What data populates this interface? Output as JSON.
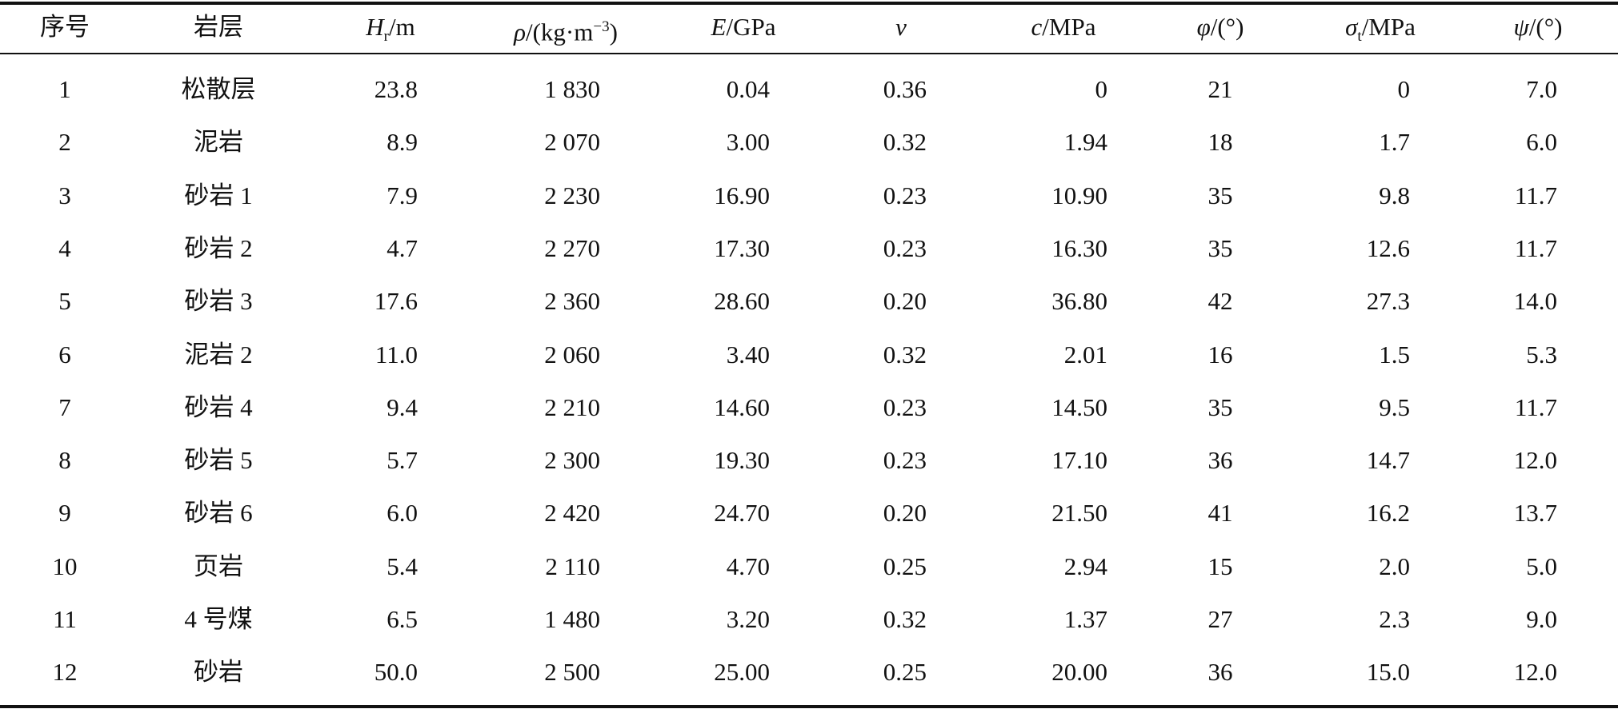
{
  "table": {
    "columns": [
      {
        "label": "序号"
      },
      {
        "label": "岩层"
      },
      {
        "symbol": "H",
        "subscript": "r",
        "unit": "/m"
      },
      {
        "symbol": "ρ",
        "unit": "/(kg·m",
        "superscript": "−3",
        "unit_close": ")"
      },
      {
        "symbol": "E",
        "unit": "/GPa"
      },
      {
        "symbol": "ν"
      },
      {
        "symbol": "c",
        "unit": "/MPa"
      },
      {
        "symbol": "φ",
        "unit": "/(°)"
      },
      {
        "symbol": "σ",
        "subscript": "t",
        "unit": "/MPa"
      },
      {
        "symbol": "ψ",
        "unit": "/(°)"
      }
    ],
    "rows": [
      [
        "1",
        "松散层",
        "23.8",
        "1 830",
        "0.04",
        "0.36",
        "0",
        "21",
        "0",
        "7.0"
      ],
      [
        "2",
        "泥岩",
        "8.9",
        "2 070",
        "3.00",
        "0.32",
        "1.94",
        "18",
        "1.7",
        "6.0"
      ],
      [
        "3",
        "砂岩 1",
        "7.9",
        "2 230",
        "16.90",
        "0.23",
        "10.90",
        "35",
        "9.8",
        "11.7"
      ],
      [
        "4",
        "砂岩 2",
        "4.7",
        "2 270",
        "17.30",
        "0.23",
        "16.30",
        "35",
        "12.6",
        "11.7"
      ],
      [
        "5",
        "砂岩 3",
        "17.6",
        "2 360",
        "28.60",
        "0.20",
        "36.80",
        "42",
        "27.3",
        "14.0"
      ],
      [
        "6",
        "泥岩 2",
        "11.0",
        "2 060",
        "3.40",
        "0.32",
        "2.01",
        "16",
        "1.5",
        "5.3"
      ],
      [
        "7",
        "砂岩 4",
        "9.4",
        "2 210",
        "14.60",
        "0.23",
        "14.50",
        "35",
        "9.5",
        "11.7"
      ],
      [
        "8",
        "砂岩 5",
        "5.7",
        "2 300",
        "19.30",
        "0.23",
        "17.10",
        "36",
        "14.7",
        "12.0"
      ],
      [
        "9",
        "砂岩 6",
        "6.0",
        "2 420",
        "24.70",
        "0.20",
        "21.50",
        "41",
        "16.2",
        "13.7"
      ],
      [
        "10",
        "页岩",
        "5.4",
        "2 110",
        "4.70",
        "0.25",
        "2.94",
        "15",
        "2.0",
        "5.0"
      ],
      [
        "11",
        "4 号煤",
        "6.5",
        "1 480",
        "3.20",
        "0.32",
        "1.37",
        "27",
        "2.3",
        "9.0"
      ],
      [
        "12",
        "砂岩",
        "50.0",
        "2 500",
        "25.00",
        "0.25",
        "20.00",
        "36",
        "15.0",
        "12.0"
      ]
    ]
  }
}
